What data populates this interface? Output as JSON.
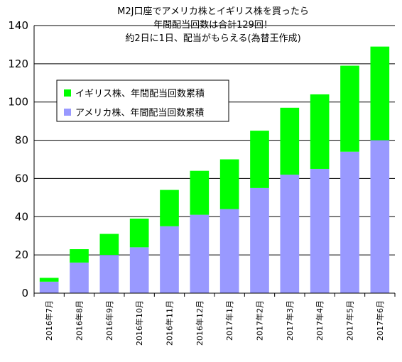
{
  "chart_data": {
    "type": "bar",
    "stacked": true,
    "title_lines": [
      "M2J口座でアメリカ株とイギリス株を買ったら",
      "年間配当回数は合計129回！",
      "約2日に1日、配当がもらえる(為替王作成)"
    ],
    "categories": [
      "2016年7月",
      "2016年8月",
      "2016年9月",
      "2016年10月",
      "2016年11月",
      "2016年12月",
      "2017年1月",
      "2017年2月",
      "2017年3月",
      "2017年4月",
      "2017年5月",
      "2017年6月"
    ],
    "series": [
      {
        "name": "アメリカ株、年間配当回数累積",
        "color": "#9999ff",
        "values": [
          6,
          16,
          20,
          24,
          35,
          41,
          44,
          55,
          62,
          65,
          74,
          80
        ]
      },
      {
        "name": "イギリス株、年間配当回数累積",
        "color": "#00ff00",
        "values": [
          2,
          7,
          11,
          15,
          19,
          23,
          26,
          30,
          35,
          39,
          45,
          49
        ]
      }
    ],
    "ylim": [
      0,
      140
    ],
    "yticks": [
      0,
      20,
      40,
      60,
      80,
      100,
      120,
      140
    ],
    "grid": true,
    "legend_position": "upper-left"
  }
}
